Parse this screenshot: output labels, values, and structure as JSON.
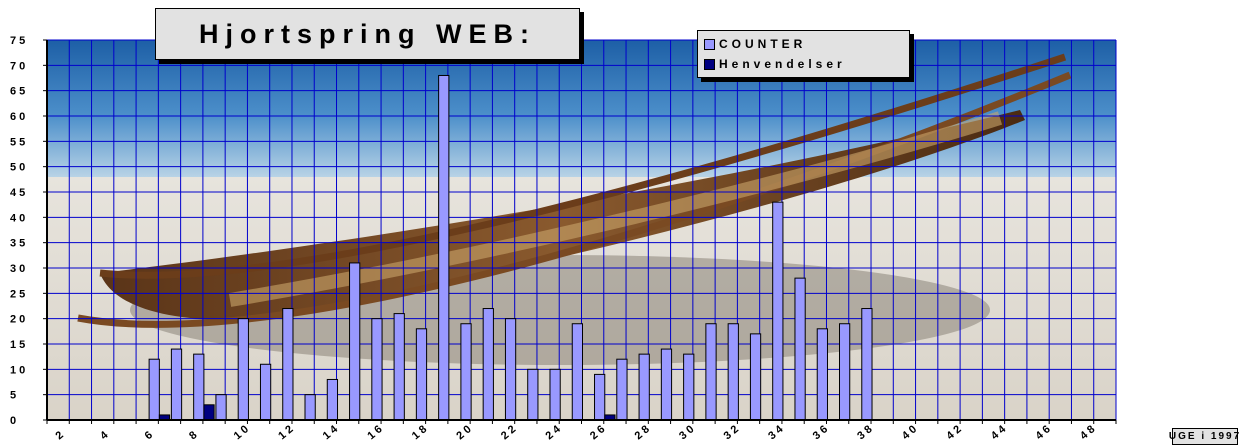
{
  "chart_data": {
    "type": "bar",
    "title": "Hjortspring WEB:",
    "xlabel": "UGE i 1997",
    "ylabel": "",
    "ylim": [
      0,
      75
    ],
    "ytick_step": 5,
    "xlim": [
      1,
      49
    ],
    "xtick_labels": [
      2,
      4,
      6,
      8,
      10,
      12,
      14,
      16,
      18,
      20,
      22,
      24,
      26,
      28,
      30,
      32,
      34,
      36,
      38,
      40,
      42,
      44,
      46,
      48
    ],
    "grid": true,
    "legend_position": "top-right",
    "series": [
      {
        "name": "COUNTER",
        "color": "#9999ff",
        "points": [
          {
            "x": 6,
            "y": 12
          },
          {
            "x": 7,
            "y": 14
          },
          {
            "x": 8,
            "y": 13
          },
          {
            "x": 9,
            "y": 5
          },
          {
            "x": 10,
            "y": 20
          },
          {
            "x": 11,
            "y": 11
          },
          {
            "x": 12,
            "y": 22
          },
          {
            "x": 13,
            "y": 5
          },
          {
            "x": 14,
            "y": 8
          },
          {
            "x": 15,
            "y": 31
          },
          {
            "x": 16,
            "y": 20
          },
          {
            "x": 17,
            "y": 21
          },
          {
            "x": 18,
            "y": 18
          },
          {
            "x": 19,
            "y": 68
          },
          {
            "x": 20,
            "y": 19
          },
          {
            "x": 21,
            "y": 22
          },
          {
            "x": 22,
            "y": 20
          },
          {
            "x": 23,
            "y": 10
          },
          {
            "x": 24,
            "y": 10
          },
          {
            "x": 25,
            "y": 19
          },
          {
            "x": 26,
            "y": 9
          },
          {
            "x": 27,
            "y": 12
          },
          {
            "x": 28,
            "y": 13
          },
          {
            "x": 29,
            "y": 14
          },
          {
            "x": 30,
            "y": 13
          },
          {
            "x": 31,
            "y": 19
          },
          {
            "x": 32,
            "y": 19
          },
          {
            "x": 33,
            "y": 17
          },
          {
            "x": 34,
            "y": 43
          },
          {
            "x": 35,
            "y": 28
          },
          {
            "x": 36,
            "y": 18
          },
          {
            "x": 37,
            "y": 19
          },
          {
            "x": 38,
            "y": 22
          }
        ]
      },
      {
        "name": "Henvendelser",
        "color": "#000080",
        "points": [
          {
            "x": 6,
            "y": 1
          },
          {
            "x": 8,
            "y": 3
          },
          {
            "x": 26,
            "y": 1
          }
        ]
      }
    ]
  },
  "legend": {
    "counter": "COUNTER",
    "henvendelser": "Henvendelser"
  }
}
